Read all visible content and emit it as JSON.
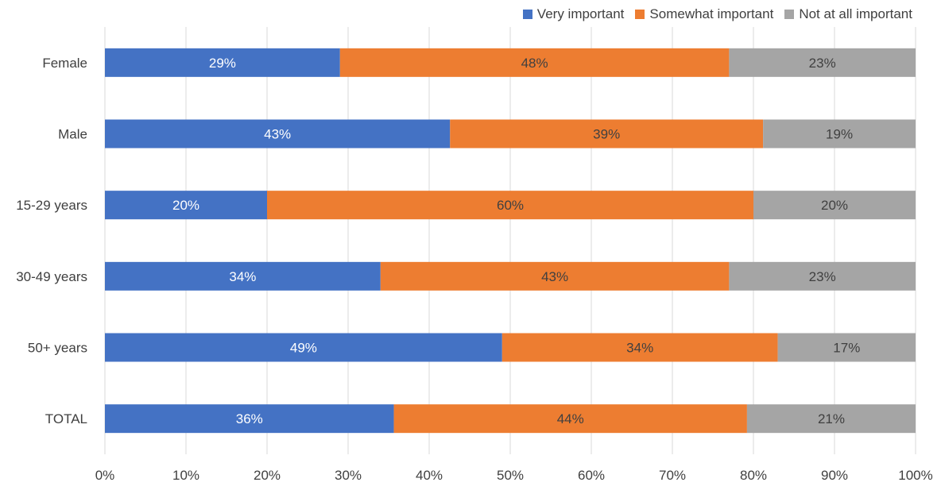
{
  "chart_data": {
    "type": "bar",
    "orientation": "horizontal",
    "stacked": true,
    "categories": [
      "Female",
      "Male",
      "15-29 years",
      "30-49 years",
      "50+ years",
      "TOTAL"
    ],
    "series": [
      {
        "name": "Very important",
        "color": "#4472C4",
        "label_color": "#ffffff",
        "values": [
          29,
          43,
          20,
          34,
          49,
          36
        ],
        "labels": [
          "29%",
          "43%",
          "20%",
          "34%",
          "49%",
          "36%"
        ]
      },
      {
        "name": "Somewhat important",
        "color": "#ED7D31",
        "label_color": "#404040",
        "values": [
          48,
          39,
          60,
          43,
          34,
          44
        ],
        "labels": [
          "48%",
          "39%",
          "60%",
          "43%",
          "34%",
          "44%"
        ]
      },
      {
        "name": "Not at all important",
        "color": "#A5A5A5",
        "label_color": "#404040",
        "values": [
          23,
          19,
          20,
          23,
          17,
          21
        ],
        "labels": [
          "23%",
          "19%",
          "20%",
          "23%",
          "17%",
          "21%"
        ]
      }
    ],
    "xlim": [
      0,
      100
    ],
    "x_ticks": [
      0,
      10,
      20,
      30,
      40,
      50,
      60,
      70,
      80,
      90,
      100
    ],
    "x_tick_labels": [
      "0%",
      "10%",
      "20%",
      "30%",
      "40%",
      "50%",
      "60%",
      "70%",
      "80%",
      "90%",
      "100%"
    ],
    "grid": true,
    "legend_position": "top-right",
    "title": "",
    "xlabel": "",
    "ylabel": ""
  }
}
